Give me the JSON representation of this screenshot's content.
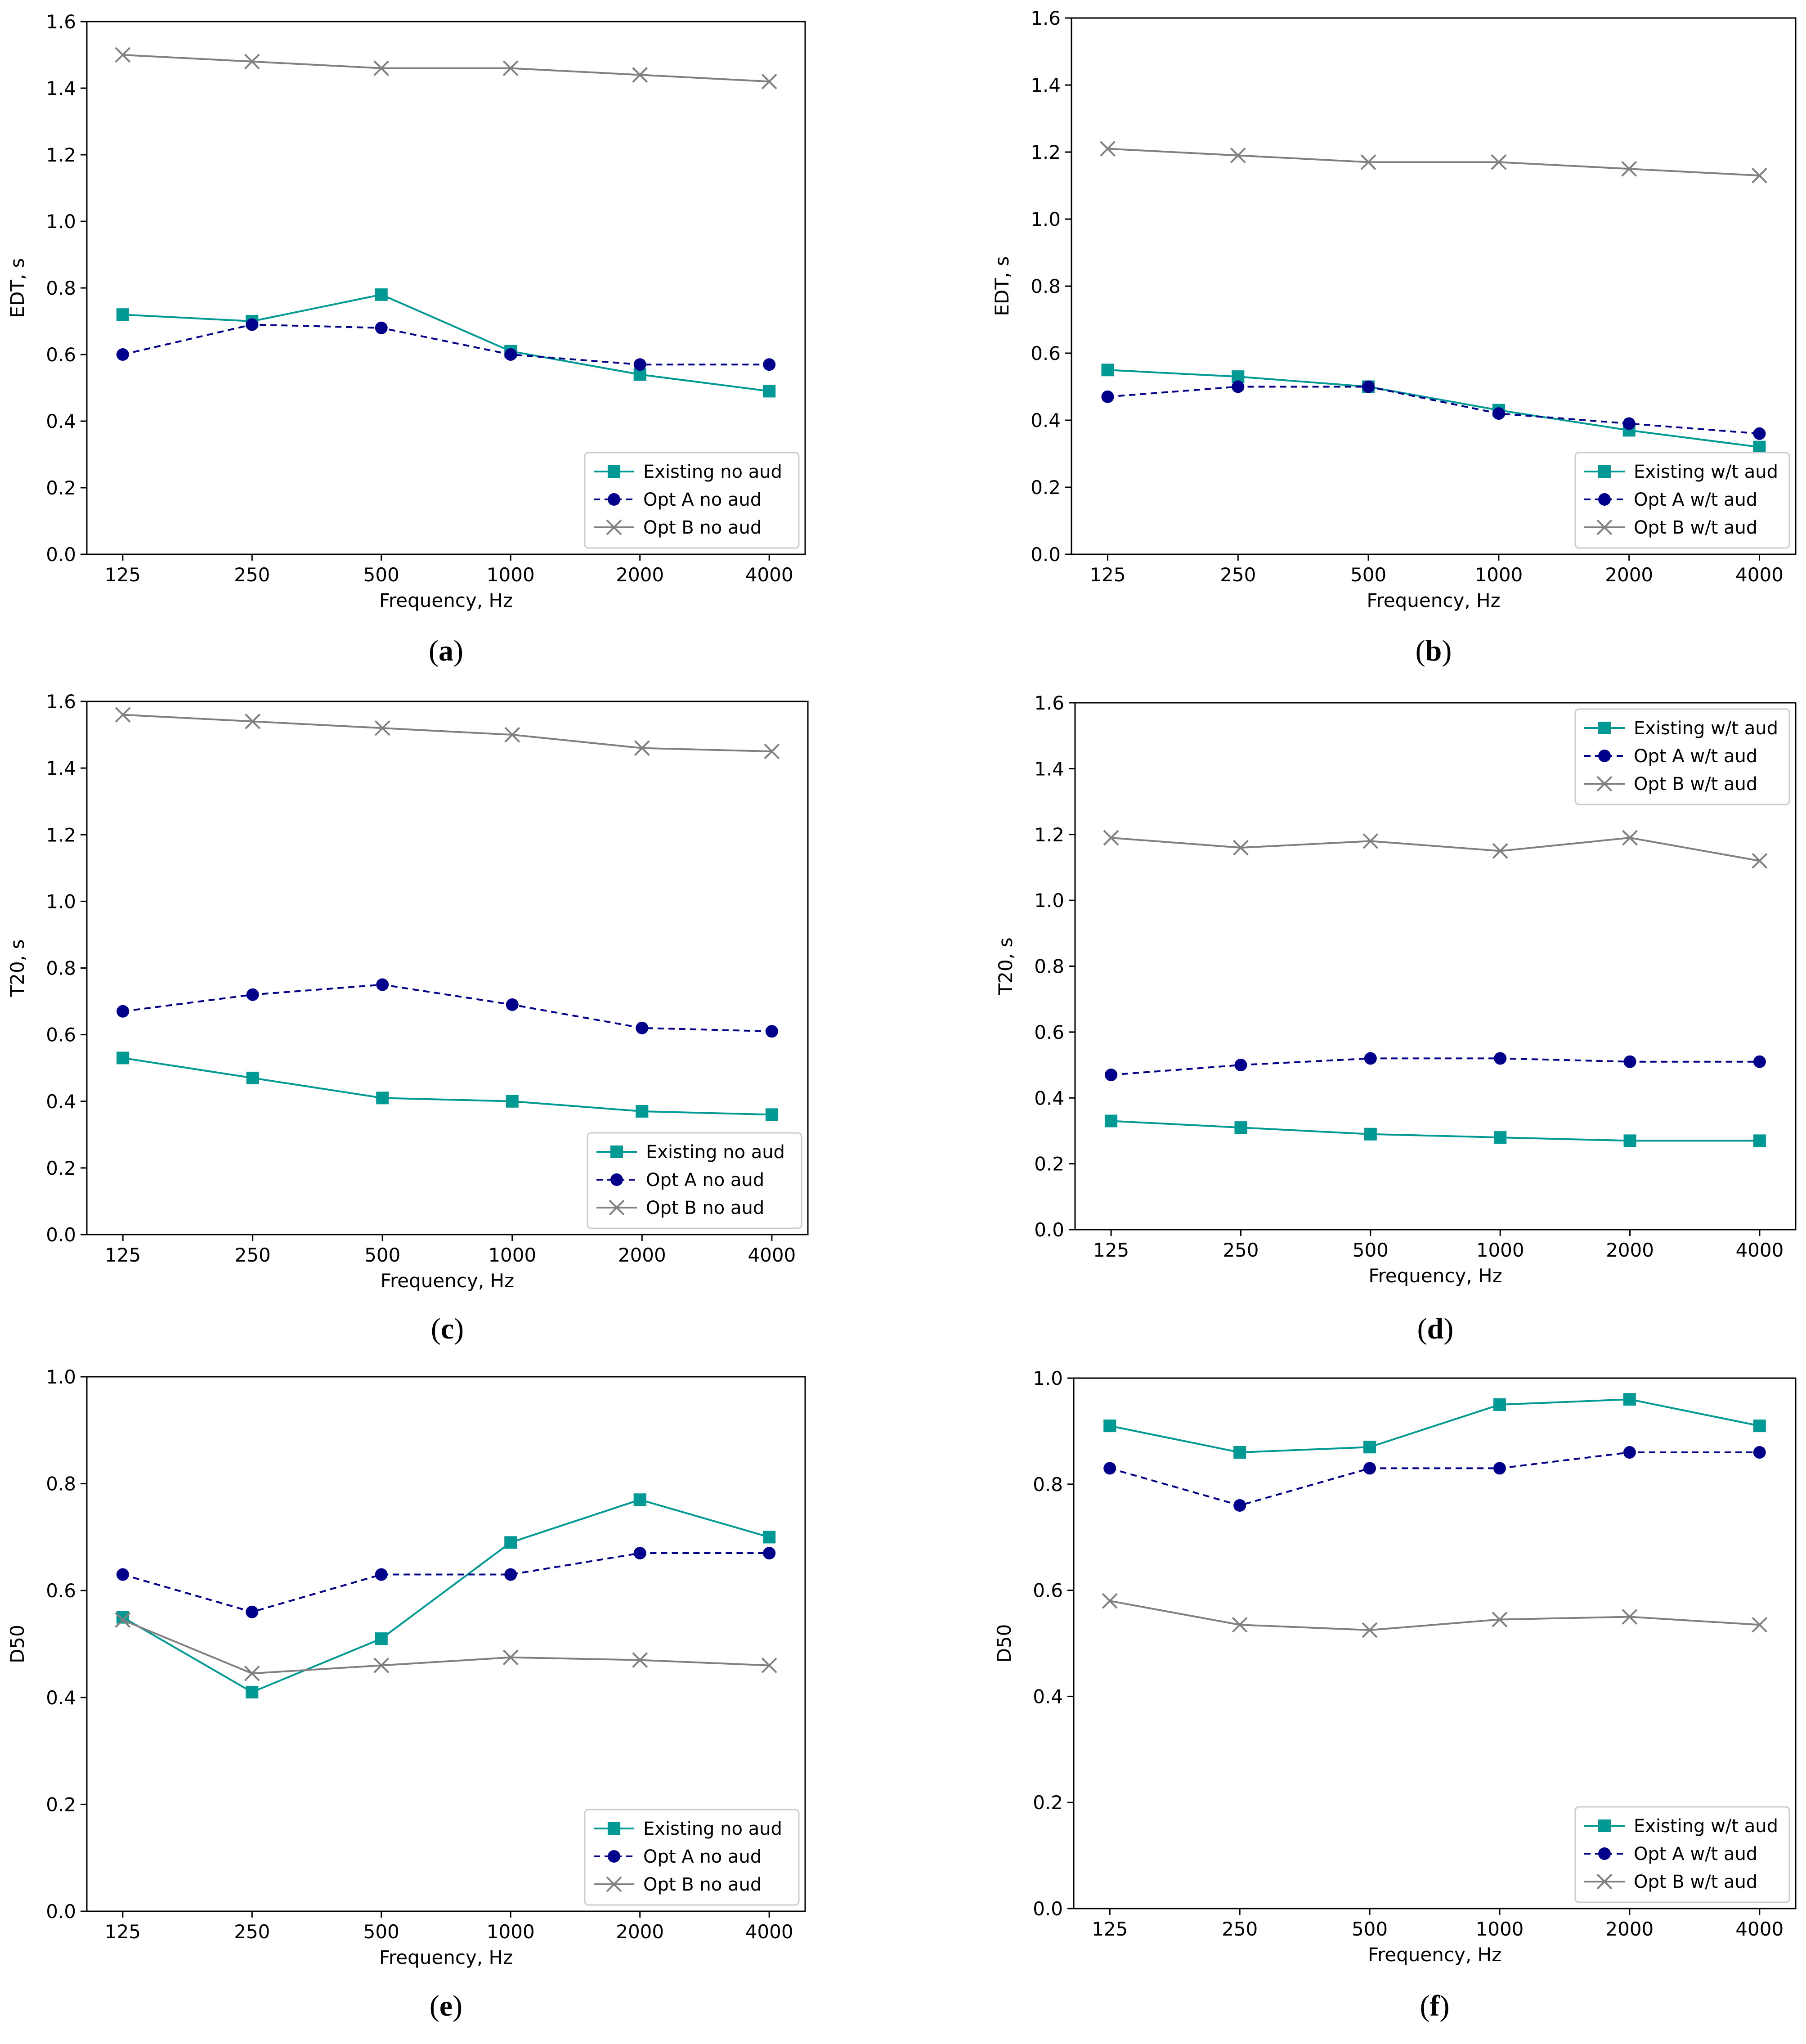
{
  "colors": {
    "existing": "#009994",
    "opt_a": "#00008B",
    "opt_b": "#808080",
    "axis": "#000000",
    "legend_border": "#cccccc"
  },
  "chart_data": [
    {
      "id": "a",
      "panel_label": "a",
      "type": "line",
      "categories": [
        "125",
        "250",
        "500",
        "1000",
        "2000",
        "4000"
      ],
      "xlabel": "Frequency, Hz",
      "ylabel": "EDT, s",
      "ylim": [
        0,
        1.6
      ],
      "yticks": [
        "0.0",
        "0.2",
        "0.4",
        "0.6",
        "0.8",
        "1.0",
        "1.2",
        "1.4",
        "1.6"
      ],
      "legend_position": "bottom-right",
      "series": [
        {
          "name": "Existing no aud",
          "style": "existing",
          "values": [
            0.72,
            0.7,
            0.78,
            0.61,
            0.54,
            0.49
          ]
        },
        {
          "name": "Opt A no aud",
          "style": "opt_a",
          "values": [
            0.6,
            0.69,
            0.68,
            0.6,
            0.57,
            0.57
          ]
        },
        {
          "name": "Opt B no aud",
          "style": "opt_b",
          "values": [
            1.5,
            1.48,
            1.46,
            1.46,
            1.44,
            1.42
          ]
        }
      ]
    },
    {
      "id": "b",
      "panel_label": "b",
      "type": "line",
      "categories": [
        "125",
        "250",
        "500",
        "1000",
        "2000",
        "4000"
      ],
      "xlabel": "Frequency, Hz",
      "ylabel": "EDT, s",
      "ylim": [
        0,
        1.6
      ],
      "yticks": [
        "0.0",
        "0.2",
        "0.4",
        "0.6",
        "0.8",
        "1.0",
        "1.2",
        "1.4",
        "1.6"
      ],
      "legend_position": "bottom-right",
      "series": [
        {
          "name": "Existing w/t aud",
          "style": "existing",
          "values": [
            0.55,
            0.53,
            0.5,
            0.43,
            0.37,
            0.32
          ]
        },
        {
          "name": "Opt A w/t aud",
          "style": "opt_a",
          "values": [
            0.47,
            0.5,
            0.5,
            0.42,
            0.39,
            0.36
          ]
        },
        {
          "name": "Opt B w/t aud",
          "style": "opt_b",
          "values": [
            1.21,
            1.19,
            1.17,
            1.17,
            1.15,
            1.13
          ]
        }
      ]
    },
    {
      "id": "c",
      "panel_label": "c",
      "type": "line",
      "categories": [
        "125",
        "250",
        "500",
        "1000",
        "2000",
        "4000"
      ],
      "xlabel": "Frequency, Hz",
      "ylabel": "T20, s",
      "ylim": [
        0,
        1.6
      ],
      "yticks": [
        "0.0",
        "0.2",
        "0.4",
        "0.6",
        "0.8",
        "1.0",
        "1.2",
        "1.4",
        "1.6"
      ],
      "legend_position": "bottom-right",
      "series": [
        {
          "name": "Existing no aud",
          "style": "existing",
          "values": [
            0.53,
            0.47,
            0.41,
            0.4,
            0.37,
            0.36
          ]
        },
        {
          "name": "Opt A no aud",
          "style": "opt_a",
          "values": [
            0.67,
            0.72,
            0.75,
            0.69,
            0.62,
            0.61
          ]
        },
        {
          "name": "Opt B no aud",
          "style": "opt_b",
          "values": [
            1.56,
            1.54,
            1.52,
            1.5,
            1.46,
            1.45
          ]
        }
      ]
    },
    {
      "id": "d",
      "panel_label": "d",
      "type": "line",
      "categories": [
        "125",
        "250",
        "500",
        "1000",
        "2000",
        "4000"
      ],
      "xlabel": "Frequency, Hz",
      "ylabel": "T20, s",
      "ylim": [
        0,
        1.6
      ],
      "yticks": [
        "0.0",
        "0.2",
        "0.4",
        "0.6",
        "0.8",
        "1.0",
        "1.2",
        "1.4",
        "1.6"
      ],
      "legend_position": "top-right",
      "series": [
        {
          "name": "Existing w/t aud",
          "style": "existing",
          "values": [
            0.33,
            0.31,
            0.29,
            0.28,
            0.27,
            0.27
          ]
        },
        {
          "name": "Opt A w/t aud",
          "style": "opt_a",
          "values": [
            0.47,
            0.5,
            0.52,
            0.52,
            0.51,
            0.51
          ]
        },
        {
          "name": "Opt B w/t aud",
          "style": "opt_b",
          "values": [
            1.19,
            1.16,
            1.18,
            1.15,
            1.19,
            1.12
          ]
        }
      ]
    },
    {
      "id": "e",
      "panel_label": "e",
      "type": "line",
      "categories": [
        "125",
        "250",
        "500",
        "1000",
        "2000",
        "4000"
      ],
      "xlabel": "Frequency, Hz",
      "ylabel": "D50",
      "ylim": [
        0,
        1.0
      ],
      "yticks": [
        "0.0",
        "0.2",
        "0.4",
        "0.6",
        "0.8",
        "1.0"
      ],
      "legend_position": "bottom-right",
      "series": [
        {
          "name": "Existing no aud",
          "style": "existing",
          "values": [
            0.55,
            0.41,
            0.51,
            0.69,
            0.77,
            0.7
          ]
        },
        {
          "name": "Opt A no aud",
          "style": "opt_a",
          "values": [
            0.63,
            0.56,
            0.63,
            0.63,
            0.67,
            0.67
          ]
        },
        {
          "name": "Opt B no aud",
          "style": "opt_b",
          "values": [
            0.545,
            0.445,
            0.46,
            0.475,
            0.47,
            0.46
          ]
        }
      ]
    },
    {
      "id": "f",
      "panel_label": "f",
      "type": "line",
      "categories": [
        "125",
        "250",
        "500",
        "1000",
        "2000",
        "4000"
      ],
      "xlabel": "Frequency, Hz",
      "ylabel": "D50",
      "ylim": [
        0,
        1.0
      ],
      "yticks": [
        "0.0",
        "0.2",
        "0.4",
        "0.6",
        "0.8",
        "1.0"
      ],
      "legend_position": "bottom-right",
      "series": [
        {
          "name": "Existing w/t aud",
          "style": "existing",
          "values": [
            0.91,
            0.86,
            0.87,
            0.95,
            0.96,
            0.91
          ]
        },
        {
          "name": "Opt A w/t aud",
          "style": "opt_a",
          "values": [
            0.83,
            0.76,
            0.83,
            0.83,
            0.86,
            0.86
          ]
        },
        {
          "name": "Opt B w/t aud",
          "style": "opt_b",
          "values": [
            0.58,
            0.535,
            0.525,
            0.545,
            0.55,
            0.535
          ]
        }
      ]
    }
  ]
}
